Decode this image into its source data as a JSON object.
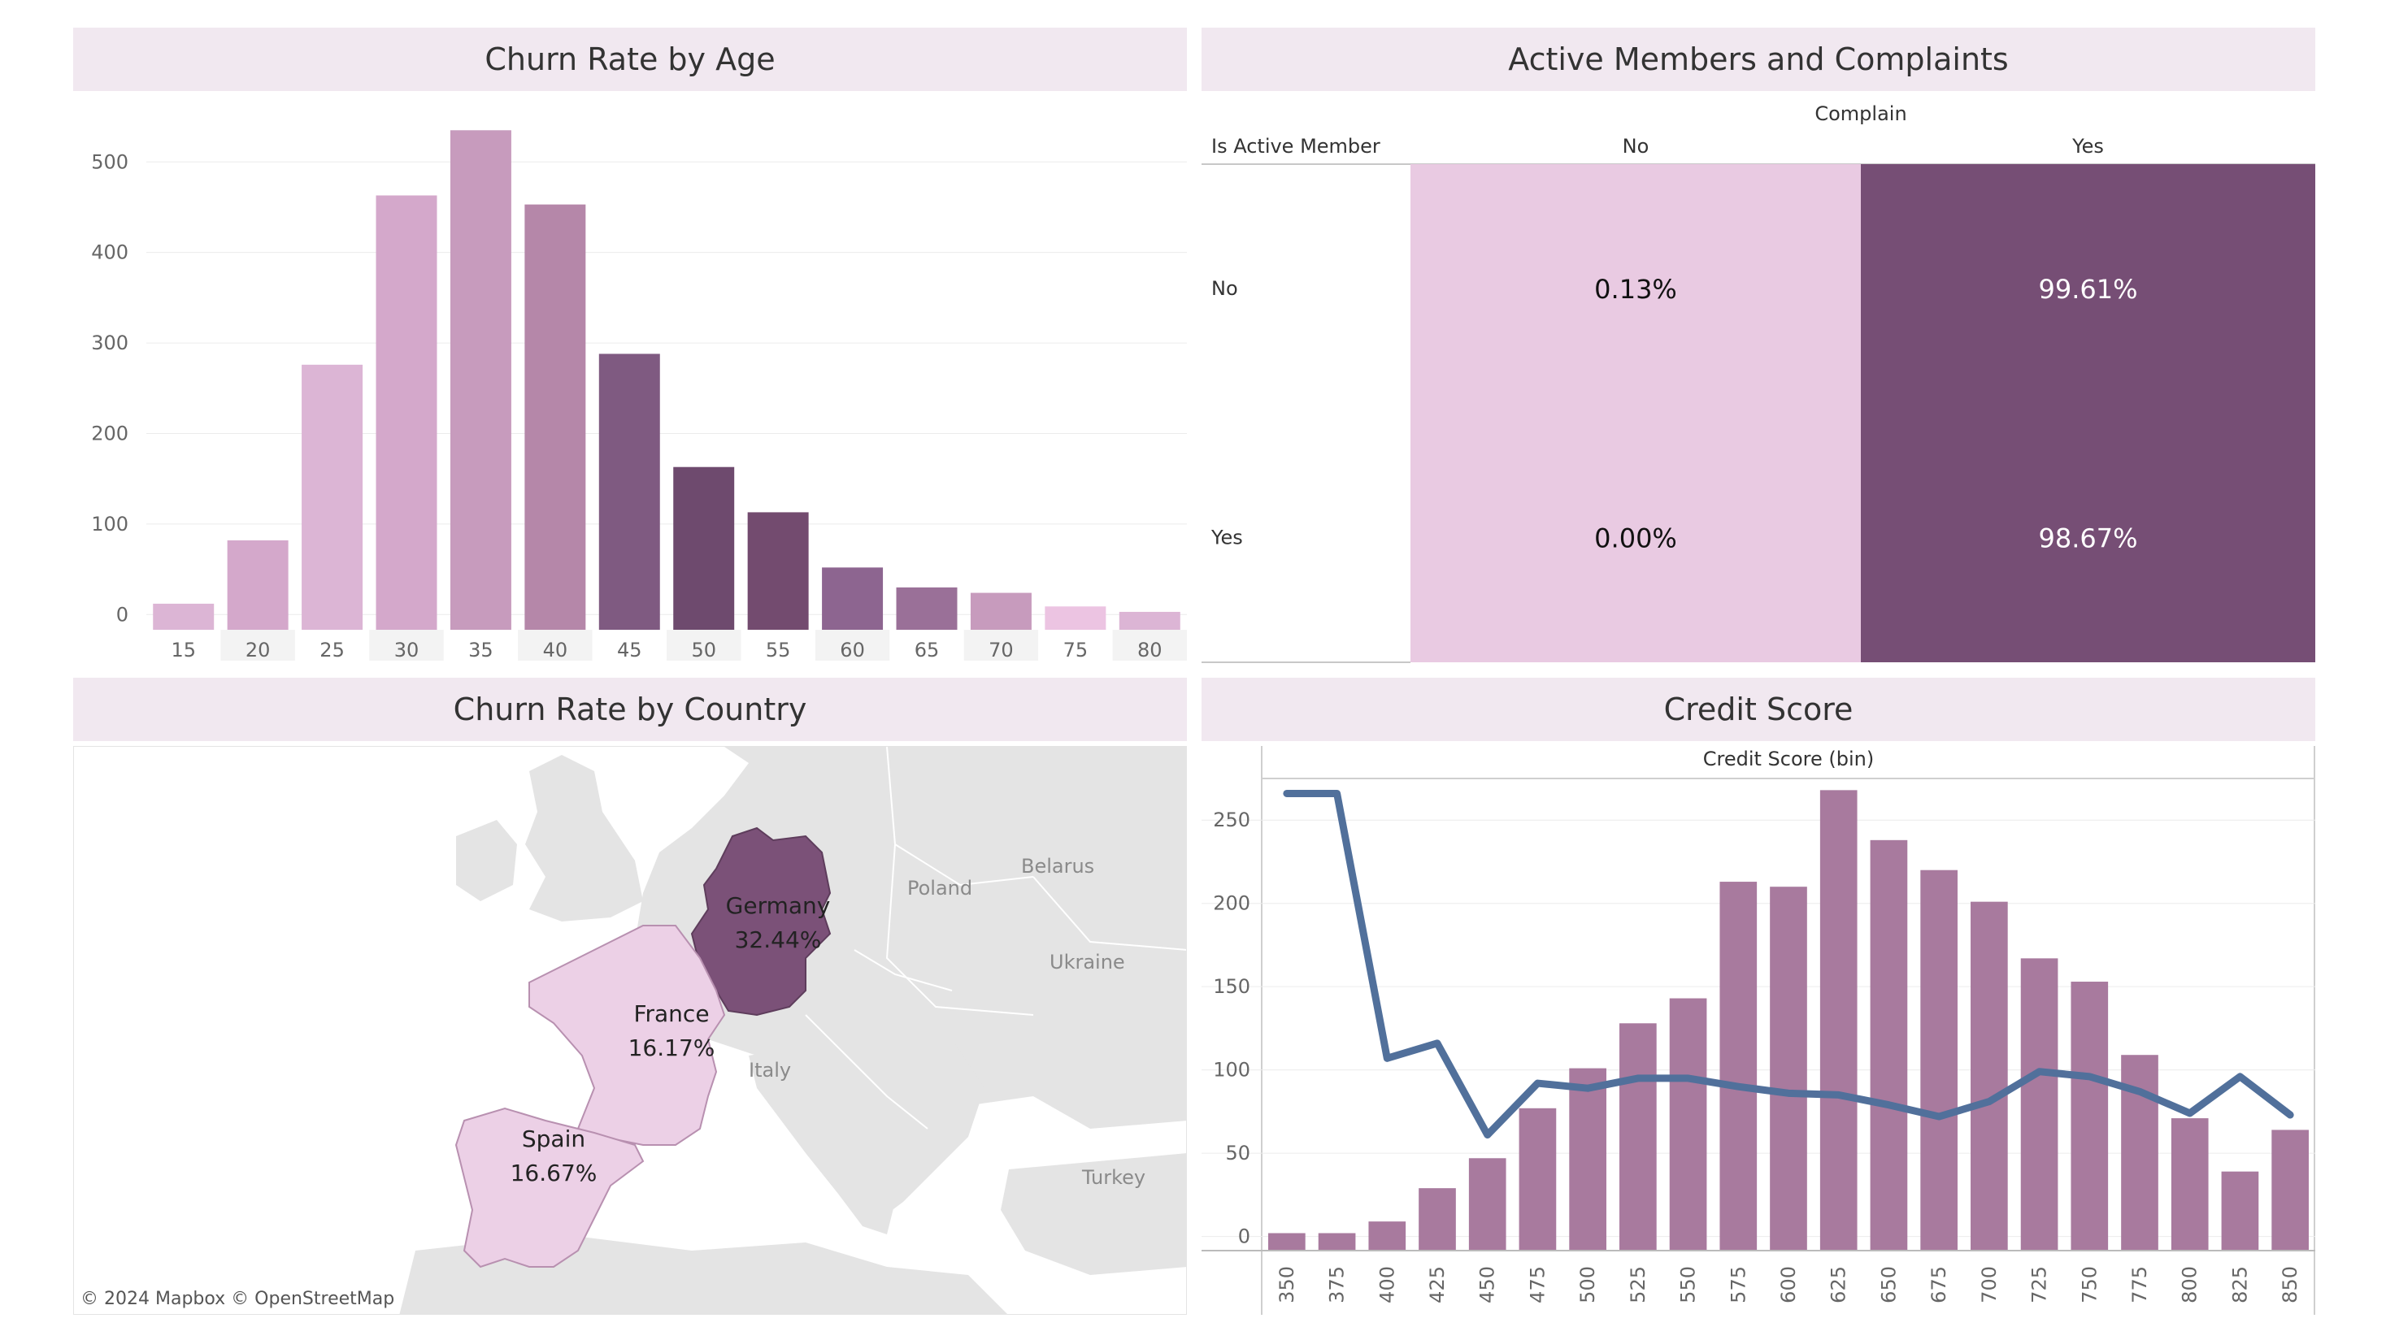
{
  "titles": {
    "age": "Churn Rate by Age",
    "heatmap": "Active Members and Complaints",
    "country": "Churn Rate by Country",
    "credit": "Credit Score"
  },
  "map": {
    "attribution": "© 2024 Mapbox  © OpenStreetMap",
    "countries": [
      {
        "name": "Germany",
        "value": "32.44%",
        "color": "#7b5178"
      },
      {
        "name": "France",
        "value": "16.17%",
        "color": "#ecd0e6"
      },
      {
        "name": "Spain",
        "value": "16.67%",
        "color": "#ecd0e6"
      }
    ],
    "place_labels": [
      "Poland",
      "Belarus",
      "Ukraine",
      "Italy",
      "Turkey"
    ]
  },
  "chart_data": [
    {
      "type": "bar",
      "title": "Churn Rate by Age",
      "categories": [
        "15",
        "20",
        "25",
        "30",
        "35",
        "40",
        "45",
        "50",
        "55",
        "60",
        "65",
        "70",
        "75",
        "80"
      ],
      "values": [
        12,
        82,
        276,
        463,
        535,
        453,
        288,
        163,
        113,
        52,
        30,
        24,
        9,
        3
      ],
      "colors": [
        "#dcb5d5",
        "#d4a8cb",
        "#dcb5d5",
        "#d4a8cb",
        "#c79bbd",
        "#b587a9",
        "#7f5a81",
        "#6e4a6e",
        "#734b6f",
        "#8d6590",
        "#9a7098",
        "#c79bbd",
        "#ecc4e2",
        "#dcb5d5"
      ],
      "yticks": [
        0,
        100,
        200,
        300,
        400,
        500
      ],
      "ylim": [
        -15,
        555
      ]
    },
    {
      "type": "heatmap",
      "title": "Active Members and Complaints",
      "column_header": "Complain",
      "row_header": "Is Active Member",
      "columns": [
        "No",
        "Yes"
      ],
      "rows": [
        "No",
        "Yes"
      ],
      "values": [
        [
          "0.13%",
          "99.61%"
        ],
        [
          "0.00%",
          "98.67%"
        ]
      ],
      "colors": [
        [
          "#e9cae2",
          "#764e75"
        ],
        [
          "#e9cae2",
          "#764e75"
        ]
      ],
      "text_colors": [
        [
          "#111111",
          "#ffffff"
        ],
        [
          "#111111",
          "#ffffff"
        ]
      ]
    },
    {
      "type": "bar+line",
      "title": "Credit Score",
      "xlabel": "Credit Score (bin)",
      "categories": [
        "350",
        "375",
        "400",
        "425",
        "450",
        "475",
        "500",
        "525",
        "550",
        "575",
        "600",
        "625",
        "650",
        "675",
        "700",
        "725",
        "750",
        "775",
        "800",
        "825",
        "850"
      ],
      "bar_values": [
        2,
        2,
        9,
        29,
        47,
        77,
        101,
        128,
        143,
        213,
        210,
        268,
        238,
        220,
        201,
        167,
        153,
        109,
        71,
        39,
        64
      ],
      "line_values": [
        266,
        266,
        107,
        116,
        61,
        92,
        89,
        95,
        95,
        90,
        86,
        85,
        79,
        72,
        81,
        99,
        96,
        87,
        74,
        96,
        73
      ],
      "bar_color": "#a87a9e",
      "line_color": "#51709b",
      "yticks": [
        0,
        50,
        100,
        150,
        200,
        250
      ],
      "ylim": [
        -8,
        275
      ]
    }
  ]
}
